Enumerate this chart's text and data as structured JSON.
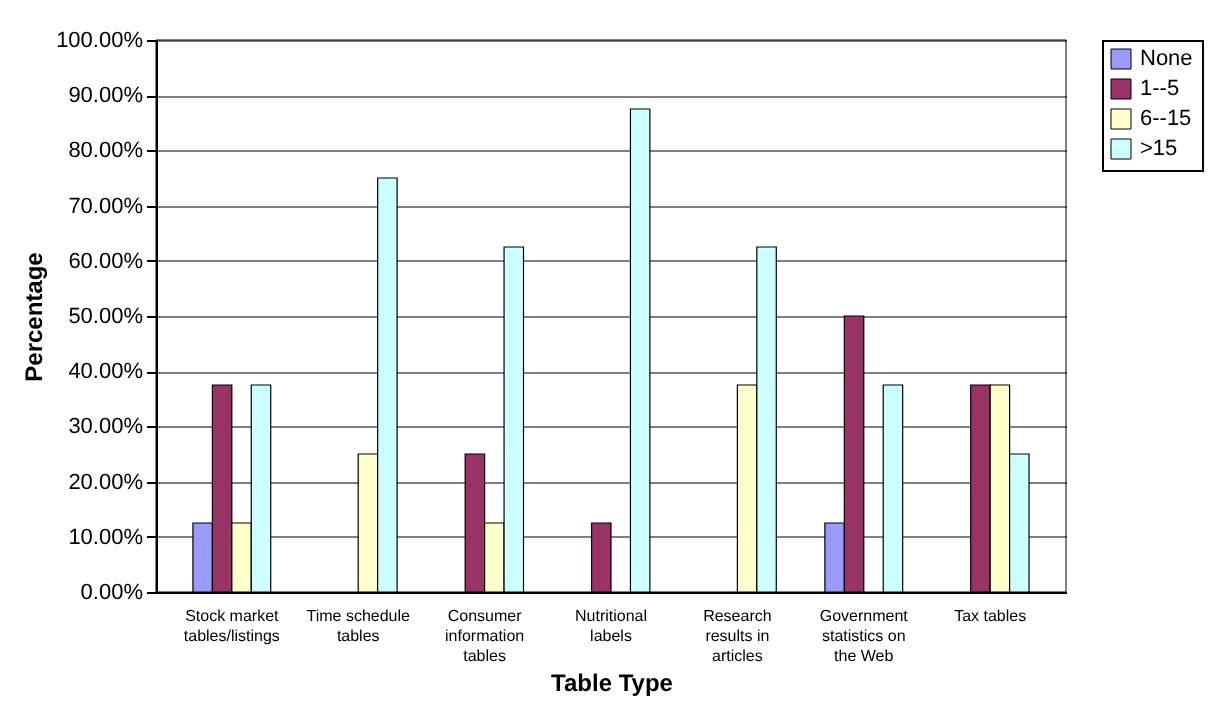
{
  "chart_data": {
    "type": "bar",
    "categories": [
      "Stock market tables/listings",
      "Time schedule tables",
      "Consumer information tables",
      "Nutritional labels",
      "Research results in articles",
      "Government statistics on the Web",
      "Tax tables"
    ],
    "series": [
      {
        "name": "None",
        "color": "#9999ff",
        "values": [
          12.5,
          0,
          0,
          0,
          0,
          12.5,
          0
        ]
      },
      {
        "name": "1--5",
        "color": "#993366",
        "values": [
          37.5,
          0,
          25,
          12.5,
          0,
          50,
          37.5
        ]
      },
      {
        "name": "6--15",
        "color": "#ffffcc",
        "values": [
          12.5,
          25,
          12.5,
          0,
          37.5,
          0,
          37.5
        ]
      },
      {
        "name": ">15",
        "color": "#ccffff",
        "values": [
          37.5,
          75,
          62.5,
          87.5,
          62.5,
          37.5,
          25
        ]
      }
    ],
    "xlabel": "Table Type",
    "ylabel": "Percentage",
    "ylim": [
      0,
      100
    ],
    "yticks": [
      {
        "value": 0,
        "label": "0.00%"
      },
      {
        "value": 10,
        "label": "10.00%"
      },
      {
        "value": 20,
        "label": "20.00%"
      },
      {
        "value": 30,
        "label": "30.00%"
      },
      {
        "value": 40,
        "label": "40.00%"
      },
      {
        "value": 50,
        "label": "50.00%"
      },
      {
        "value": 60,
        "label": "60.00%"
      },
      {
        "value": 70,
        "label": "70.00%"
      },
      {
        "value": 80,
        "label": "80.00%"
      },
      {
        "value": 90,
        "label": "90.00%"
      },
      {
        "value": 100,
        "label": "100.00%"
      }
    ],
    "grid": "y",
    "legend": "right"
  }
}
